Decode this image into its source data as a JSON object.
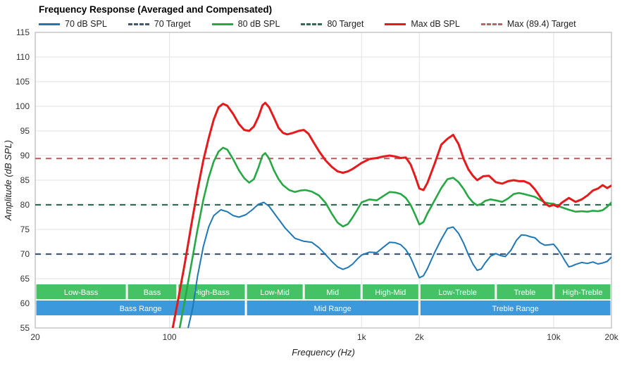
{
  "title": "Frequency Response (Averaged and Compensated)",
  "legend": [
    {
      "label": "70 dB SPL",
      "color": "#1f77b4",
      "dash": false
    },
    {
      "label": "70 Target",
      "color": "#46586e",
      "dash": true
    },
    {
      "label": "80 dB SPL",
      "color": "#27a844",
      "dash": false
    },
    {
      "label": "80 Target",
      "color": "#346b58",
      "dash": true
    },
    {
      "label": "Max dB SPL",
      "color": "#e41a1c",
      "dash": false
    },
    {
      "label": "Max (89.4) Target",
      "color": "#b4686c",
      "dash": true
    }
  ],
  "axes": {
    "x_label": "Frequency (Hz)",
    "y_label": "Amplitude (dB SPL)"
  },
  "chart_data": {
    "type": "line",
    "x_scale": "log",
    "x_range": [
      20,
      20000
    ],
    "y_range": [
      55,
      115
    ],
    "grid": true,
    "legend_position": "top",
    "y_ticks": [
      55,
      60,
      65,
      70,
      75,
      80,
      85,
      90,
      95,
      100,
      105,
      110,
      115
    ],
    "x_ticks": [
      {
        "v": 20,
        "label": "20"
      },
      {
        "v": 100,
        "label": "100"
      },
      {
        "v": 1000,
        "label": "1k"
      },
      {
        "v": 2000,
        "label": "2k"
      },
      {
        "v": 10000,
        "label": "10k"
      },
      {
        "v": 20000,
        "label": "20k"
      }
    ],
    "x_gridlines": [
      100,
      1000,
      2000,
      10000
    ],
    "targets": [
      {
        "label": "70 Target",
        "value": 70,
        "color": "#46586e"
      },
      {
        "label": "80 Target",
        "value": 80,
        "color": "#346b58"
      },
      {
        "label": "Max (89.4) Target",
        "value": 89.4,
        "color": "#b4686c"
      }
    ],
    "band_colors": {
      "row1": "#45c266",
      "row2": "#3b99dc"
    },
    "bands": [
      {
        "row": 1,
        "label": "Low-Bass",
        "start": 20,
        "end": 60
      },
      {
        "row": 1,
        "label": "Bass",
        "start": 60,
        "end": 110
      },
      {
        "row": 1,
        "label": "High-Bass",
        "start": 110,
        "end": 250
      },
      {
        "row": 1,
        "label": "Low-Mid",
        "start": 250,
        "end": 500
      },
      {
        "row": 1,
        "label": "Mid",
        "start": 500,
        "end": 1000
      },
      {
        "row": 1,
        "label": "High-Mid",
        "start": 1000,
        "end": 2000
      },
      {
        "row": 1,
        "label": "Low-Treble",
        "start": 2000,
        "end": 5000
      },
      {
        "row": 1,
        "label": "Treble",
        "start": 5000,
        "end": 10000
      },
      {
        "row": 1,
        "label": "High-Treble",
        "start": 10000,
        "end": 20000
      },
      {
        "row": 2,
        "label": "Bass Range",
        "start": 20,
        "end": 250
      },
      {
        "row": 2,
        "label": "Mid Range",
        "start": 250,
        "end": 2000
      },
      {
        "row": 2,
        "label": "Treble Range",
        "start": 2000,
        "end": 20000
      }
    ],
    "series": [
      {
        "name": "70 dB SPL",
        "color": "#1f77b4",
        "width": 2,
        "points": [
          [
            125,
            55
          ],
          [
            132,
            59
          ],
          [
            140,
            65.5
          ],
          [
            150,
            71.5
          ],
          [
            160,
            75.5
          ],
          [
            170,
            77.8
          ],
          [
            185,
            79
          ],
          [
            200,
            78.6
          ],
          [
            215,
            77.8
          ],
          [
            230,
            77.5
          ],
          [
            250,
            78
          ],
          [
            270,
            79
          ],
          [
            290,
            80.1
          ],
          [
            310,
            80.5
          ],
          [
            330,
            79.7
          ],
          [
            360,
            77.7
          ],
          [
            400,
            75.3
          ],
          [
            450,
            73.2
          ],
          [
            500,
            72.6
          ],
          [
            550,
            72.4
          ],
          [
            600,
            71.3
          ],
          [
            650,
            69.9
          ],
          [
            700,
            68.5
          ],
          [
            750,
            67.4
          ],
          [
            800,
            66.9
          ],
          [
            850,
            67.3
          ],
          [
            900,
            68
          ],
          [
            950,
            69
          ],
          [
            1000,
            69.8
          ],
          [
            1100,
            70.4
          ],
          [
            1200,
            70.3
          ],
          [
            1300,
            71.4
          ],
          [
            1400,
            72.4
          ],
          [
            1500,
            72.3
          ],
          [
            1600,
            71.9
          ],
          [
            1700,
            70.9
          ],
          [
            1800,
            69.3
          ],
          [
            1900,
            67.2
          ],
          [
            2000,
            65.2
          ],
          [
            2100,
            65.6
          ],
          [
            2200,
            67
          ],
          [
            2400,
            70.3
          ],
          [
            2600,
            73
          ],
          [
            2800,
            75.2
          ],
          [
            3000,
            75.5
          ],
          [
            3200,
            74.2
          ],
          [
            3400,
            72.2
          ],
          [
            3600,
            69.9
          ],
          [
            3800,
            68
          ],
          [
            4000,
            66.7
          ],
          [
            4200,
            67
          ],
          [
            4400,
            68.2
          ],
          [
            4700,
            69.6
          ],
          [
            5000,
            70.1
          ],
          [
            5300,
            69.7
          ],
          [
            5600,
            69.5
          ],
          [
            6000,
            70.8
          ],
          [
            6400,
            72.8
          ],
          [
            6800,
            73.9
          ],
          [
            7200,
            73.8
          ],
          [
            7600,
            73.5
          ],
          [
            8000,
            73.3
          ],
          [
            8500,
            72.3
          ],
          [
            9000,
            71.8
          ],
          [
            9500,
            71.9
          ],
          [
            10000,
            72
          ],
          [
            10500,
            71
          ],
          [
            11000,
            69.8
          ],
          [
            11500,
            68.5
          ],
          [
            12000,
            67.4
          ],
          [
            12500,
            67.6
          ],
          [
            13000,
            67.9
          ],
          [
            14000,
            68.3
          ],
          [
            15000,
            68.1
          ],
          [
            16000,
            68.4
          ],
          [
            17000,
            68
          ],
          [
            18000,
            68.2
          ],
          [
            19000,
            68.5
          ],
          [
            20000,
            69.4
          ]
        ]
      },
      {
        "name": "80 dB SPL",
        "color": "#27a844",
        "width": 2.6,
        "points": [
          [
            113,
            55
          ],
          [
            120,
            60.5
          ],
          [
            130,
            68
          ],
          [
            140,
            75
          ],
          [
            150,
            81
          ],
          [
            160,
            85.5
          ],
          [
            170,
            88.8
          ],
          [
            180,
            90.8
          ],
          [
            190,
            91.6
          ],
          [
            200,
            91.2
          ],
          [
            215,
            89.2
          ],
          [
            230,
            87
          ],
          [
            245,
            85.4
          ],
          [
            260,
            84.5
          ],
          [
            275,
            85.2
          ],
          [
            290,
            87.5
          ],
          [
            305,
            90
          ],
          [
            315,
            90.5
          ],
          [
            330,
            89.4
          ],
          [
            350,
            87
          ],
          [
            370,
            85.2
          ],
          [
            390,
            84
          ],
          [
            420,
            83
          ],
          [
            450,
            82.6
          ],
          [
            480,
            82.9
          ],
          [
            510,
            83
          ],
          [
            550,
            82.7
          ],
          [
            600,
            81.9
          ],
          [
            650,
            80.4
          ],
          [
            700,
            78.2
          ],
          [
            750,
            76.4
          ],
          [
            800,
            75.6
          ],
          [
            850,
            76.1
          ],
          [
            900,
            77.5
          ],
          [
            950,
            79
          ],
          [
            1000,
            80.5
          ],
          [
            1100,
            81.1
          ],
          [
            1200,
            80.9
          ],
          [
            1300,
            81.8
          ],
          [
            1400,
            82.6
          ],
          [
            1500,
            82.5
          ],
          [
            1600,
            82.2
          ],
          [
            1700,
            81.4
          ],
          [
            1800,
            80
          ],
          [
            1900,
            78
          ],
          [
            2000,
            76
          ],
          [
            2100,
            76.5
          ],
          [
            2200,
            78.2
          ],
          [
            2400,
            80.9
          ],
          [
            2600,
            83.4
          ],
          [
            2800,
            85.2
          ],
          [
            3000,
            85.5
          ],
          [
            3200,
            84.6
          ],
          [
            3400,
            83.2
          ],
          [
            3600,
            81.6
          ],
          [
            3800,
            80.5
          ],
          [
            4000,
            79.9
          ],
          [
            4200,
            80.2
          ],
          [
            4400,
            80.8
          ],
          [
            4700,
            81.1
          ],
          [
            5000,
            80.9
          ],
          [
            5400,
            80.6
          ],
          [
            5800,
            81.3
          ],
          [
            6200,
            82.2
          ],
          [
            6600,
            82.4
          ],
          [
            7000,
            82.2
          ],
          [
            7500,
            81.9
          ],
          [
            8000,
            81.6
          ],
          [
            8500,
            81
          ],
          [
            9000,
            80.5
          ],
          [
            9500,
            80.3
          ],
          [
            10000,
            80.2
          ],
          [
            11000,
            79.5
          ],
          [
            12000,
            79
          ],
          [
            13000,
            78.6
          ],
          [
            14000,
            78.7
          ],
          [
            15000,
            78.6
          ],
          [
            16000,
            78.8
          ],
          [
            17000,
            78.7
          ],
          [
            18000,
            78.9
          ],
          [
            19000,
            79.6
          ],
          [
            20000,
            80.5
          ]
        ]
      },
      {
        "name": "Max dB SPL",
        "color": "#e41a1c",
        "width": 3,
        "points": [
          [
            104,
            55
          ],
          [
            110,
            60
          ],
          [
            120,
            68
          ],
          [
            130,
            76
          ],
          [
            140,
            83
          ],
          [
            150,
            89
          ],
          [
            160,
            93.5
          ],
          [
            170,
            97.3
          ],
          [
            180,
            99.8
          ],
          [
            190,
            100.5
          ],
          [
            200,
            100.1
          ],
          [
            215,
            98.4
          ],
          [
            230,
            96.4
          ],
          [
            245,
            95.2
          ],
          [
            260,
            95
          ],
          [
            275,
            95.9
          ],
          [
            290,
            97.8
          ],
          [
            305,
            100.2
          ],
          [
            315,
            100.7
          ],
          [
            330,
            99.8
          ],
          [
            350,
            97.7
          ],
          [
            370,
            95.6
          ],
          [
            390,
            94.6
          ],
          [
            410,
            94.3
          ],
          [
            440,
            94.6
          ],
          [
            470,
            95
          ],
          [
            500,
            95.2
          ],
          [
            530,
            94.4
          ],
          [
            560,
            92.8
          ],
          [
            600,
            90.9
          ],
          [
            650,
            89
          ],
          [
            700,
            87.7
          ],
          [
            750,
            86.8
          ],
          [
            800,
            86.5
          ],
          [
            850,
            86.8
          ],
          [
            900,
            87.3
          ],
          [
            1000,
            88.5
          ],
          [
            1100,
            89.3
          ],
          [
            1200,
            89.5
          ],
          [
            1300,
            89.8
          ],
          [
            1400,
            90
          ],
          [
            1500,
            89.8
          ],
          [
            1600,
            89.5
          ],
          [
            1700,
            89.6
          ],
          [
            1800,
            88.2
          ],
          [
            1900,
            85.8
          ],
          [
            2000,
            83.3
          ],
          [
            2100,
            83
          ],
          [
            2200,
            84.4
          ],
          [
            2400,
            88.3
          ],
          [
            2600,
            92.2
          ],
          [
            2800,
            93.4
          ],
          [
            3000,
            94.2
          ],
          [
            3200,
            92.3
          ],
          [
            3400,
            89.3
          ],
          [
            3600,
            87.2
          ],
          [
            3800,
            85.9
          ],
          [
            4000,
            85
          ],
          [
            4300,
            85.8
          ],
          [
            4600,
            85.9
          ],
          [
            5000,
            84.6
          ],
          [
            5400,
            84.3
          ],
          [
            5800,
            84.8
          ],
          [
            6200,
            85
          ],
          [
            6600,
            84.8
          ],
          [
            7000,
            84.8
          ],
          [
            7500,
            84.3
          ],
          [
            8000,
            83.1
          ],
          [
            8500,
            81.6
          ],
          [
            9000,
            80.3
          ],
          [
            9500,
            79.7
          ],
          [
            10000,
            80
          ],
          [
            10500,
            79.6
          ],
          [
            11000,
            80.4
          ],
          [
            12000,
            81.4
          ],
          [
            13000,
            80.6
          ],
          [
            14000,
            81.1
          ],
          [
            15000,
            81.9
          ],
          [
            16000,
            82.9
          ],
          [
            17000,
            83.3
          ],
          [
            18000,
            84
          ],
          [
            19000,
            83.4
          ],
          [
            20000,
            83.9
          ]
        ]
      }
    ]
  }
}
